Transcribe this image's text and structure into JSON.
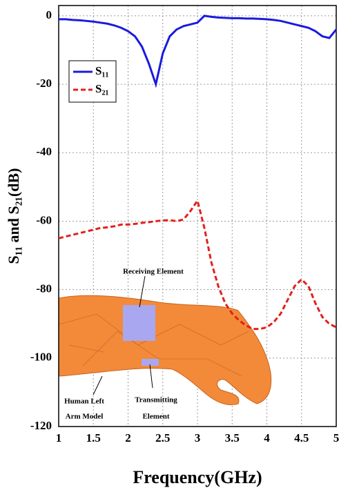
{
  "chart_data": {
    "type": "line",
    "xlabel": "Frequency(GHz)",
    "ylabel": "S₁₁ and S₂₁(dB)",
    "x": [
      1.0,
      1.1,
      1.2,
      1.3,
      1.4,
      1.5,
      1.6,
      1.7,
      1.8,
      1.9,
      2.0,
      2.1,
      2.2,
      2.3,
      2.4,
      2.5,
      2.6,
      2.7,
      2.8,
      2.9,
      3.0,
      3.1,
      3.2,
      3.3,
      3.4,
      3.5,
      3.6,
      3.7,
      3.8,
      3.9,
      4.0,
      4.1,
      4.2,
      4.3,
      4.4,
      4.5,
      4.6,
      4.7,
      4.8,
      4.9,
      5.0
    ],
    "series": [
      {
        "name": "S₁₁",
        "color": "#1a1adf",
        "dash": false,
        "values": [
          -1,
          -1,
          -1.2,
          -1.3,
          -1.5,
          -1.7,
          -2,
          -2.3,
          -2.8,
          -3.5,
          -4.5,
          -6,
          -9,
          -14,
          -20,
          -11,
          -6,
          -4,
          -3,
          -2.5,
          -2,
          0,
          -0.3,
          -0.5,
          -0.6,
          -0.7,
          -0.7,
          -0.8,
          -0.8,
          -0.9,
          -1,
          -1.2,
          -1.5,
          -2,
          -2.5,
          -3,
          -3.5,
          -4.5,
          -6,
          -6.5,
          -4
        ]
      },
      {
        "name": "S₂₁",
        "color": "#e0201c",
        "dash": true,
        "values": [
          -65,
          -64.5,
          -64,
          -63.5,
          -63,
          -62.5,
          -62,
          -61.8,
          -61.5,
          -61,
          -61,
          -60.8,
          -60.5,
          -60.3,
          -60,
          -59.8,
          -59.7,
          -60,
          -59.5,
          -57,
          -54,
          -62,
          -72,
          -79,
          -84,
          -87,
          -89,
          -90.5,
          -91.5,
          -91.5,
          -91,
          -89.5,
          -87,
          -83,
          -79,
          -77,
          -79,
          -84,
          -88,
          -90,
          -91
        ]
      }
    ],
    "xlim": [
      1,
      5
    ],
    "xticks": [
      1,
      1.5,
      2,
      2.5,
      3,
      3.5,
      4,
      4.5,
      5
    ],
    "ylim": [
      -120,
      3
    ],
    "yticks": [
      0,
      -20,
      -40,
      -60,
      -80,
      -100,
      -120
    ],
    "grid": true,
    "legend": "upper left",
    "annotations": {
      "receiving": "Receiving Element",
      "transmitting": [
        "Transmitting",
        "Element"
      ],
      "arm": [
        "Human Left",
        "Arm Model"
      ]
    }
  }
}
